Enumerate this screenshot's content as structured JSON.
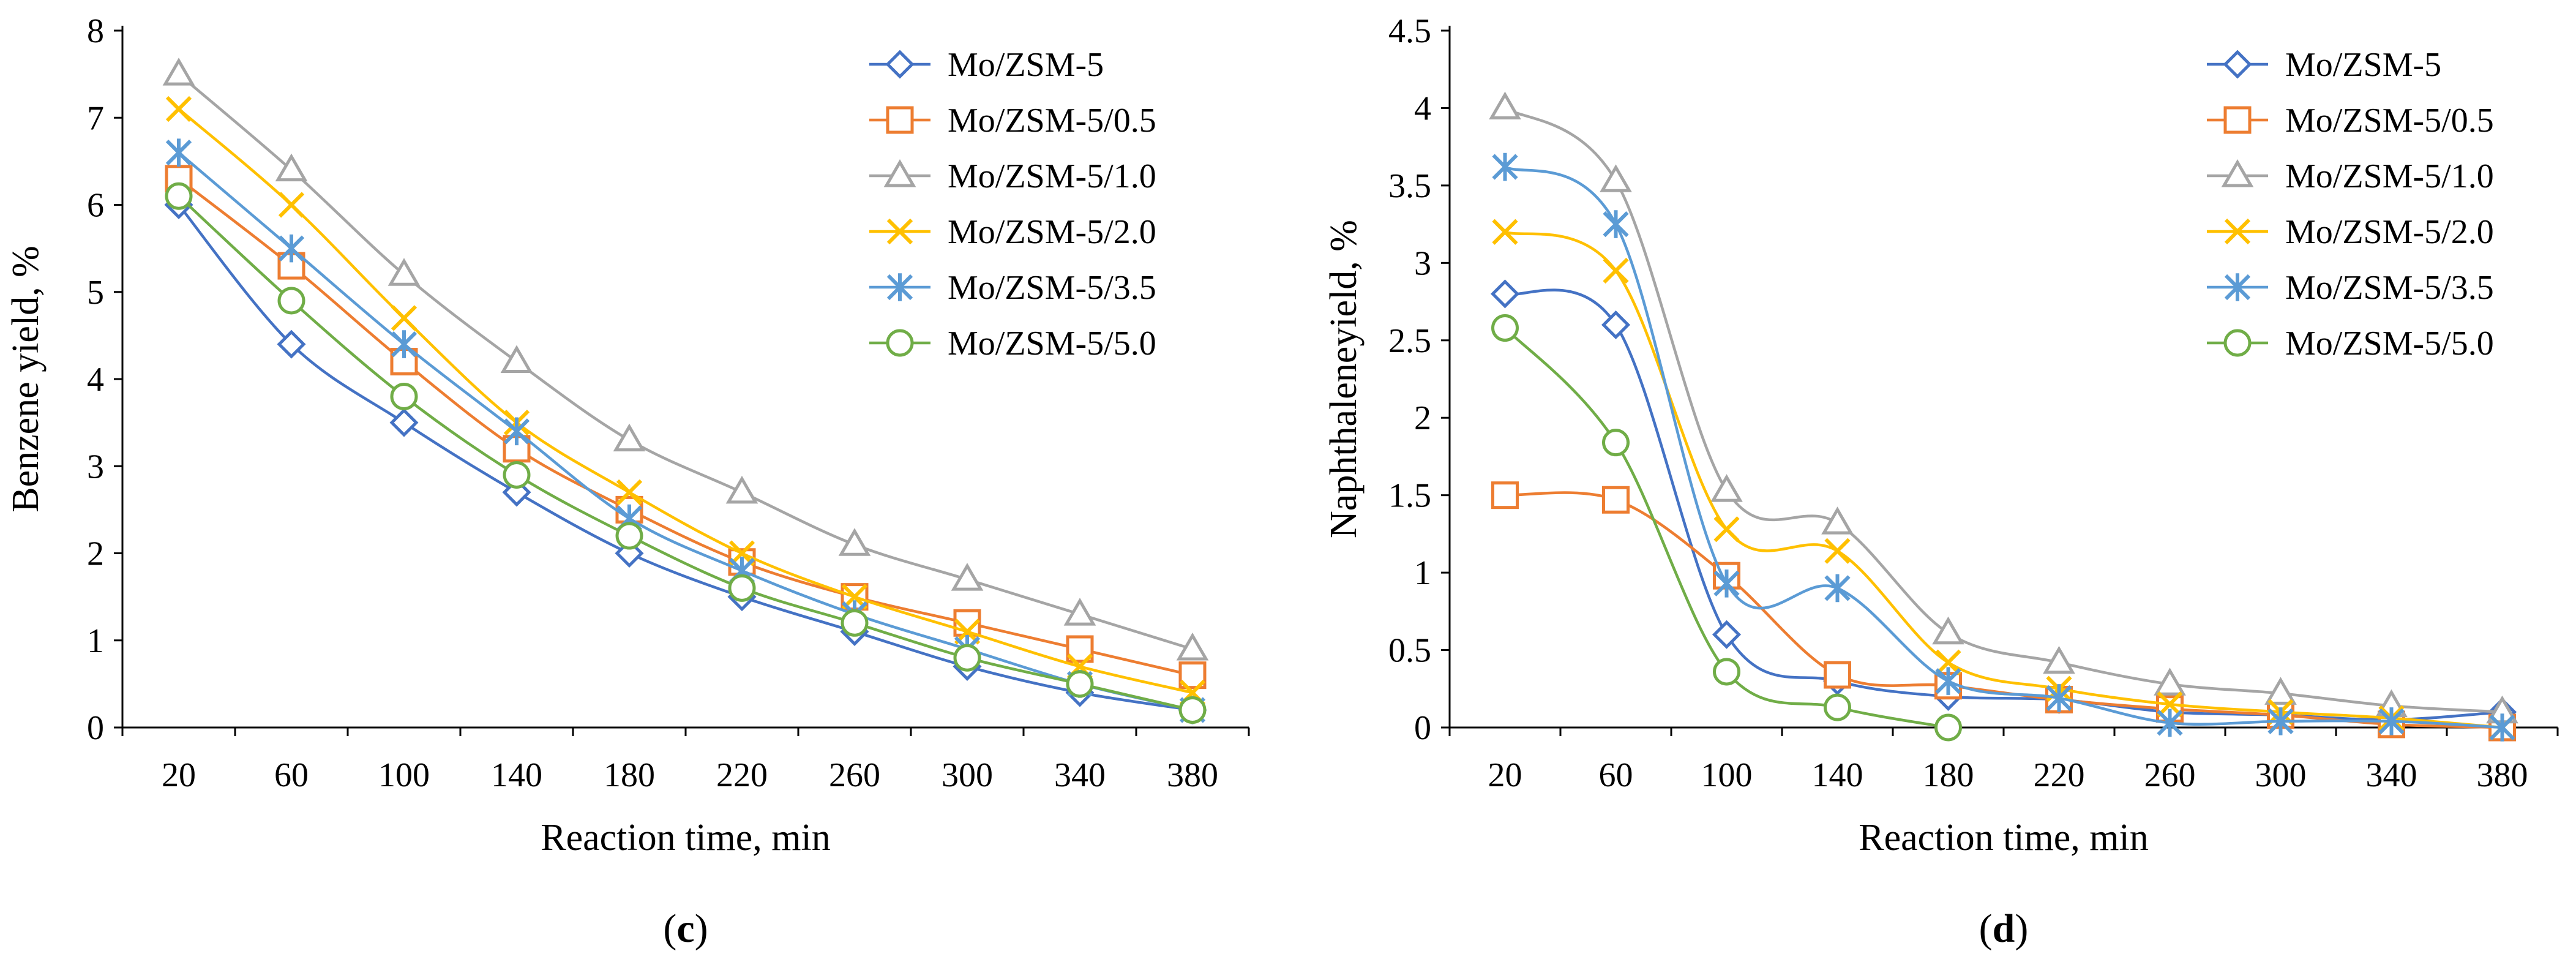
{
  "chart_data": [
    {
      "type": "line",
      "panel_label": "(c)",
      "panel_letter": "c",
      "xlabel": "Reaction time, min",
      "ylabel": "Benzene yield, %",
      "ylim": [
        0,
        8
      ],
      "yticks": [
        0,
        1,
        2,
        3,
        4,
        5,
        6,
        7,
        8
      ],
      "ytick_labels": [
        "0",
        "1",
        "2",
        "3",
        "4",
        "5",
        "6",
        "7",
        "8"
      ],
      "categories": [
        "20",
        "60",
        "100",
        "140",
        "180",
        "220",
        "260",
        "300",
        "340",
        "380"
      ],
      "grid": false,
      "legend_position": "top-right",
      "series": [
        {
          "name": "Mo/ZSM-5",
          "marker": "diamond",
          "color": "#4472C4",
          "values": [
            6.0,
            4.4,
            3.5,
            2.7,
            2.0,
            1.5,
            1.1,
            0.7,
            0.4,
            0.2
          ]
        },
        {
          "name": "Mo/ZSM-5/0.5",
          "marker": "square",
          "color": "#ED7D31",
          "values": [
            6.3,
            5.3,
            4.2,
            3.2,
            2.5,
            1.9,
            1.5,
            1.2,
            0.9,
            0.6
          ]
        },
        {
          "name": "Mo/ZSM-5/1.0",
          "marker": "triangle",
          "color": "#A5A5A5",
          "values": [
            7.5,
            6.4,
            5.2,
            4.2,
            3.3,
            2.7,
            2.1,
            1.7,
            1.3,
            0.9
          ]
        },
        {
          "name": "Mo/ZSM-5/2.0",
          "marker": "x",
          "color": "#FFC000",
          "values": [
            7.1,
            6.0,
            4.7,
            3.5,
            2.7,
            2.0,
            1.5,
            1.1,
            0.7,
            0.4
          ]
        },
        {
          "name": "Mo/ZSM-5/3.5",
          "marker": "star",
          "color": "#5B9BD5",
          "values": [
            6.6,
            5.5,
            4.4,
            3.4,
            2.4,
            1.8,
            1.3,
            0.9,
            0.5,
            0.2
          ]
        },
        {
          "name": "Mo/ZSM-5/5.0",
          "marker": "circle",
          "color": "#70AD47",
          "values": [
            6.1,
            4.9,
            3.8,
            2.9,
            2.2,
            1.6,
            1.2,
            0.8,
            0.5,
            0.2
          ]
        }
      ]
    },
    {
      "type": "line",
      "panel_label": "(d)",
      "panel_letter": "d",
      "xlabel": "Reaction time, min",
      "ylabel": "Naphthaleneyield, %",
      "ylim": [
        0,
        4.5
      ],
      "yticks": [
        0,
        0.5,
        1,
        1.5,
        2,
        2.5,
        3,
        3.5,
        4,
        4.5
      ],
      "ytick_labels": [
        "0",
        "0.5",
        "1",
        "1.5",
        "2",
        "2.5",
        "3",
        "3.5",
        "4",
        "4.5"
      ],
      "categories": [
        "20",
        "60",
        "100",
        "140",
        "180",
        "220",
        "260",
        "300",
        "340",
        "380"
      ],
      "grid": false,
      "legend_position": "top-right",
      "series": [
        {
          "name": "Mo/ZSM-5",
          "marker": "diamond",
          "color": "#4472C4",
          "values": [
            2.8,
            2.6,
            0.6,
            0.3,
            0.2,
            0.18,
            0.1,
            0.08,
            0.05,
            0.1
          ]
        },
        {
          "name": "Mo/ZSM-5/0.5",
          "marker": "square",
          "color": "#ED7D31",
          "values": [
            1.5,
            1.47,
            0.98,
            0.34,
            0.27,
            0.18,
            0.12,
            0.08,
            0.02,
            0.0
          ]
        },
        {
          "name": "Mo/ZSM-5/1.0",
          "marker": "triangle",
          "color": "#A5A5A5",
          "values": [
            4.0,
            3.53,
            1.53,
            1.32,
            0.61,
            0.42,
            0.28,
            0.22,
            0.14,
            0.1
          ]
        },
        {
          "name": "Mo/ZSM-5/2.0",
          "marker": "x",
          "color": "#FFC000",
          "values": [
            3.2,
            2.95,
            1.28,
            1.14,
            0.42,
            0.25,
            0.15,
            0.1,
            0.06,
            0.0
          ]
        },
        {
          "name": "Mo/ZSM-5/3.5",
          "marker": "star",
          "color": "#5B9BD5",
          "values": [
            3.62,
            3.25,
            0.93,
            0.9,
            0.3,
            0.19,
            0.03,
            0.04,
            0.04,
            0.0
          ]
        },
        {
          "name": "Mo/ZSM-5/5.0",
          "marker": "circle",
          "color": "#70AD47",
          "values": [
            2.58,
            1.84,
            0.36,
            0.13,
            0.0,
            null,
            null,
            null,
            null,
            null
          ]
        }
      ]
    }
  ]
}
